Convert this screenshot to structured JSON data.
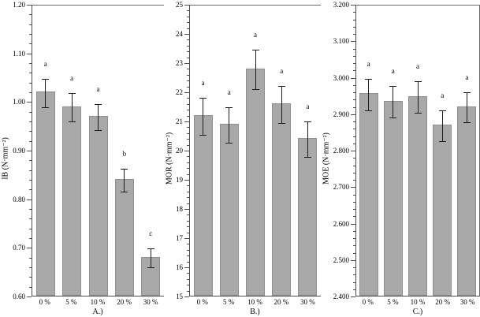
{
  "colors": {
    "bar_fill": "#a8a8a8",
    "bar_edge": "#8f8f8f",
    "axis": "#4d4d4d",
    "error_bar": "#1c1c1c",
    "text": "#000000"
  },
  "chart_data": [
    {
      "type": "bar",
      "panel_label": "A.)",
      "ylabel": "IB (N·mm⁻²)",
      "ylim": [
        0.6,
        1.2
      ],
      "ymajor": 0.1,
      "yminor": 0.02,
      "ytick_labels": [
        "1.20",
        "1.10",
        "1.00",
        "0.90",
        "0.80",
        "0.70",
        "0.60"
      ],
      "categories": [
        "0 %",
        "5 %",
        "10 %",
        "20 %",
        "30 %"
      ],
      "values": [
        1.02,
        0.99,
        0.97,
        0.84,
        0.68
      ],
      "errors": [
        0.03,
        0.03,
        0.028,
        0.025,
        0.02
      ],
      "letters": [
        "a",
        "a",
        "a",
        "b",
        "c"
      ],
      "right_spine": false,
      "grid": false,
      "legend": false
    },
    {
      "type": "bar",
      "panel_label": "B.)",
      "ylabel": "MOR (N·mm⁻²)",
      "ylim": [
        15,
        25
      ],
      "ymajor": 1,
      "yminor": 0.2,
      "ytick_labels": [
        "25",
        "24",
        "23",
        "22",
        "21",
        "20",
        "19",
        "18",
        "17",
        "16",
        "15"
      ],
      "categories": [
        "0 %",
        "5 %",
        "10 %",
        "20 %",
        "30 %"
      ],
      "values": [
        21.2,
        20.9,
        22.8,
        21.6,
        20.4
      ],
      "errors": [
        0.65,
        0.62,
        0.68,
        0.65,
        0.62
      ],
      "letters": [
        "a",
        "a",
        "a",
        "a",
        "a"
      ],
      "right_spine": false,
      "grid": false,
      "legend": false
    },
    {
      "type": "bar",
      "panel_label": "C.)",
      "ylabel": "MOE (N·mm⁻²)",
      "ylim": [
        2.4,
        3.2
      ],
      "ymajor": 0.1,
      "yminor": 0.02,
      "ytick_labels": [
        "3.200",
        "3.100",
        "3.000",
        "2.900",
        "2.800",
        "2.700",
        "2.600",
        "2.500",
        "2.400"
      ],
      "categories": [
        "0 %",
        "5 %",
        "10 %",
        "20 %",
        "30 %"
      ],
      "values": [
        2.955,
        2.935,
        2.948,
        2.87,
        2.92
      ],
      "errors": [
        0.045,
        0.045,
        0.045,
        0.043,
        0.043
      ],
      "letters": [
        "a",
        "a",
        "a",
        "a",
        "a"
      ],
      "right_spine": true,
      "grid": false,
      "legend": false
    }
  ]
}
